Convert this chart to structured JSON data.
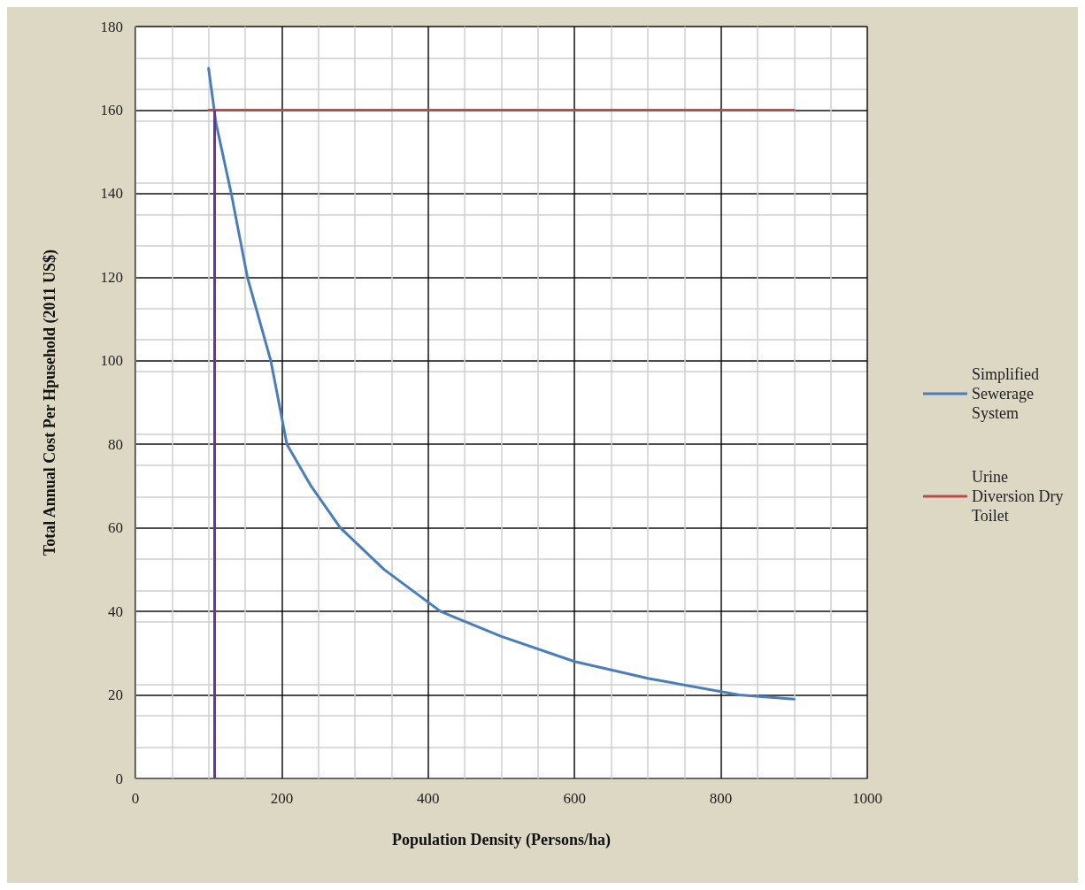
{
  "chart_data": {
    "type": "line",
    "xlabel": "Population Density (Persons/ha)",
    "ylabel": "Total Annual Cost Per Hpusehold (2011 US$)",
    "series": [
      {
        "name": "Simplified Sewerage System",
        "color": "#4a7ebb",
        "x": [
          100,
          110,
          131,
          153,
          185,
          207,
          240,
          280,
          340,
          417,
          500,
          600,
          700,
          825,
          900
        ],
        "values": [
          170,
          157,
          140,
          120,
          100,
          80,
          70,
          60,
          50,
          40,
          34,
          28,
          24,
          20,
          19
        ]
      },
      {
        "name": "Urine Diversion Dry Toilet",
        "color": "#be4b48",
        "x": [
          100,
          900
        ],
        "values": [
          160,
          160
        ]
      }
    ],
    "ref_lines": [
      {
        "axis": "x",
        "value": 108,
        "color": "#7030a0"
      }
    ],
    "xlim": [
      0,
      1000
    ],
    "xticks": [
      0,
      200,
      400,
      600,
      800,
      1000
    ],
    "ylim": [
      0,
      180
    ],
    "yticks": [
      0,
      20,
      40,
      60,
      80,
      100,
      120,
      140,
      160,
      180
    ],
    "grid": true,
    "legend": "right",
    "marker": "none",
    "line_style": "solid"
  }
}
